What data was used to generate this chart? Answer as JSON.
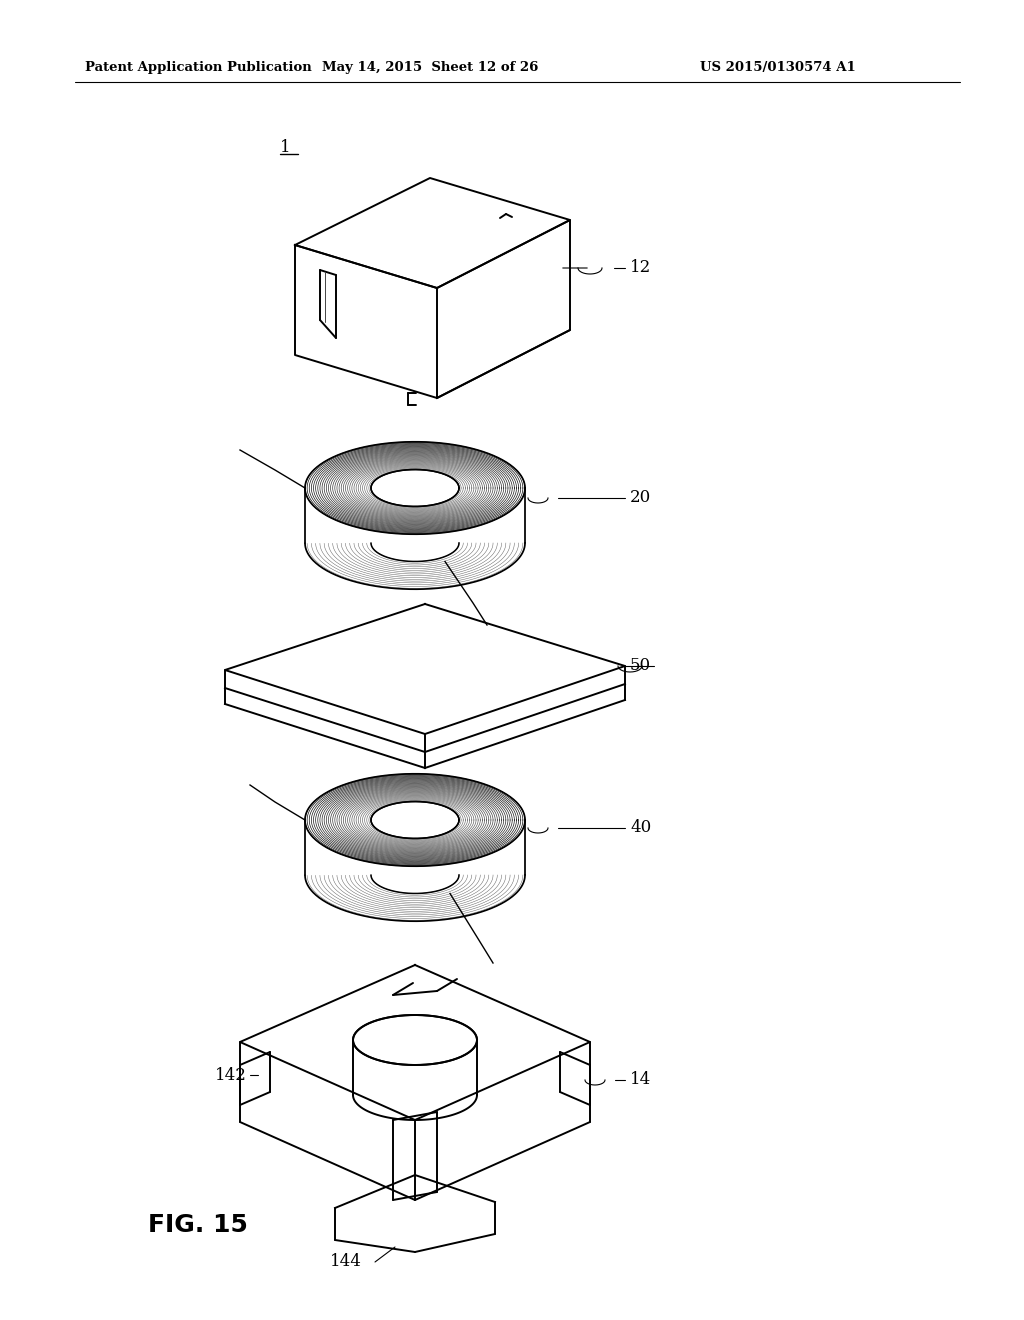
{
  "background_color": "#ffffff",
  "header_left": "Patent Application Publication",
  "header_mid": "May 14, 2015  Sheet 12 of 26",
  "header_right": "US 2015/0130574 A1",
  "fig_label": "FIG. 15",
  "line_color": "#000000",
  "line_width": 1.4
}
